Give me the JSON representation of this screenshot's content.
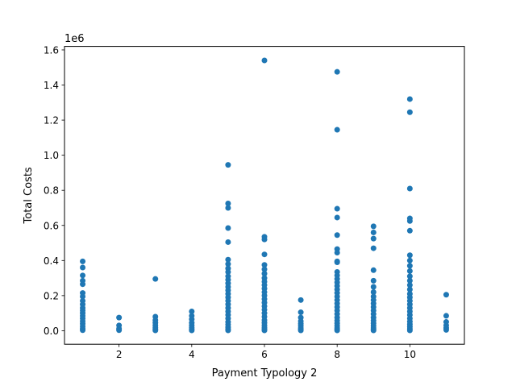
{
  "chart_data": {
    "type": "scatter",
    "xlabel": "Payment Typology 2",
    "ylabel": "Total Costs",
    "y_offset_label": "1e6",
    "xlim": [
      0.5,
      11.5
    ],
    "ylim": [
      -0.077,
      1.62
    ],
    "x_ticks": [
      2,
      4,
      6,
      8,
      10
    ],
    "x_tick_labels": [
      "2",
      "4",
      "6",
      "8",
      "10"
    ],
    "y_ticks": [
      0.0,
      0.2,
      0.4,
      0.6,
      0.8,
      1.0,
      1.2,
      1.4,
      1.6
    ],
    "y_tick_labels": [
      "0.0",
      "0.2",
      "0.4",
      "0.6",
      "0.8",
      "1.0",
      "1.2",
      "1.4",
      "1.6"
    ],
    "grid": false,
    "legend": "none",
    "marker_color": "#1f77b4",
    "series": [
      {
        "points": [
          {
            "x": 1,
            "y": 0.395
          },
          {
            "x": 1,
            "y": 0.36
          },
          {
            "x": 1,
            "y": 0.315
          },
          {
            "x": 1,
            "y": 0.285
          },
          {
            "x": 1,
            "y": 0.265
          },
          {
            "x": 1,
            "y": 0.215
          },
          {
            "x": 1,
            "y": 0.195
          },
          {
            "x": 1,
            "y": 0.17
          },
          {
            "x": 1,
            "y": 0.15
          },
          {
            "x": 1,
            "y": 0.13
          },
          {
            "x": 1,
            "y": 0.115
          },
          {
            "x": 1,
            "y": 0.1
          },
          {
            "x": 1,
            "y": 0.085
          },
          {
            "x": 1,
            "y": 0.07
          },
          {
            "x": 1,
            "y": 0.055
          },
          {
            "x": 1,
            "y": 0.04
          },
          {
            "x": 1,
            "y": 0.025
          },
          {
            "x": 1,
            "y": 0.012
          },
          {
            "x": 1,
            "y": 0.003
          },
          {
            "x": 2,
            "y": 0.075
          },
          {
            "x": 2,
            "y": 0.03
          },
          {
            "x": 2,
            "y": 0.012
          },
          {
            "x": 2,
            "y": 0.003
          },
          {
            "x": 3,
            "y": 0.295
          },
          {
            "x": 3,
            "y": 0.08
          },
          {
            "x": 3,
            "y": 0.06
          },
          {
            "x": 3,
            "y": 0.045
          },
          {
            "x": 3,
            "y": 0.03
          },
          {
            "x": 3,
            "y": 0.018
          },
          {
            "x": 3,
            "y": 0.008
          },
          {
            "x": 3,
            "y": 0.002
          },
          {
            "x": 4,
            "y": 0.11
          },
          {
            "x": 4,
            "y": 0.085
          },
          {
            "x": 4,
            "y": 0.065
          },
          {
            "x": 4,
            "y": 0.045
          },
          {
            "x": 4,
            "y": 0.03
          },
          {
            "x": 4,
            "y": 0.018
          },
          {
            "x": 4,
            "y": 0.008
          },
          {
            "x": 4,
            "y": 0.002
          },
          {
            "x": 5,
            "y": 0.945
          },
          {
            "x": 5,
            "y": 0.725
          },
          {
            "x": 5,
            "y": 0.7
          },
          {
            "x": 5,
            "y": 0.585
          },
          {
            "x": 5,
            "y": 0.505
          },
          {
            "x": 5,
            "y": 0.405
          },
          {
            "x": 5,
            "y": 0.38
          },
          {
            "x": 5,
            "y": 0.355
          },
          {
            "x": 5,
            "y": 0.335
          },
          {
            "x": 5,
            "y": 0.31
          },
          {
            "x": 5,
            "y": 0.29
          },
          {
            "x": 5,
            "y": 0.27
          },
          {
            "x": 5,
            "y": 0.25
          },
          {
            "x": 5,
            "y": 0.23
          },
          {
            "x": 5,
            "y": 0.21
          },
          {
            "x": 5,
            "y": 0.19
          },
          {
            "x": 5,
            "y": 0.17
          },
          {
            "x": 5,
            "y": 0.15
          },
          {
            "x": 5,
            "y": 0.13
          },
          {
            "x": 5,
            "y": 0.11
          },
          {
            "x": 5,
            "y": 0.09
          },
          {
            "x": 5,
            "y": 0.07
          },
          {
            "x": 5,
            "y": 0.05
          },
          {
            "x": 5,
            "y": 0.035
          },
          {
            "x": 5,
            "y": 0.02
          },
          {
            "x": 5,
            "y": 0.008
          },
          {
            "x": 5,
            "y": 0.002
          },
          {
            "x": 6,
            "y": 1.54
          },
          {
            "x": 6,
            "y": 0.535
          },
          {
            "x": 6,
            "y": 0.52
          },
          {
            "x": 6,
            "y": 0.435
          },
          {
            "x": 6,
            "y": 0.375
          },
          {
            "x": 6,
            "y": 0.35
          },
          {
            "x": 6,
            "y": 0.325
          },
          {
            "x": 6,
            "y": 0.3
          },
          {
            "x": 6,
            "y": 0.28
          },
          {
            "x": 6,
            "y": 0.26
          },
          {
            "x": 6,
            "y": 0.24
          },
          {
            "x": 6,
            "y": 0.22
          },
          {
            "x": 6,
            "y": 0.2
          },
          {
            "x": 6,
            "y": 0.18
          },
          {
            "x": 6,
            "y": 0.16
          },
          {
            "x": 6,
            "y": 0.14
          },
          {
            "x": 6,
            "y": 0.12
          },
          {
            "x": 6,
            "y": 0.1
          },
          {
            "x": 6,
            "y": 0.08
          },
          {
            "x": 6,
            "y": 0.06
          },
          {
            "x": 6,
            "y": 0.045
          },
          {
            "x": 6,
            "y": 0.03
          },
          {
            "x": 6,
            "y": 0.018
          },
          {
            "x": 6,
            "y": 0.008
          },
          {
            "x": 6,
            "y": 0.002
          },
          {
            "x": 7,
            "y": 0.175
          },
          {
            "x": 7,
            "y": 0.105
          },
          {
            "x": 7,
            "y": 0.075
          },
          {
            "x": 7,
            "y": 0.055
          },
          {
            "x": 7,
            "y": 0.04
          },
          {
            "x": 7,
            "y": 0.028
          },
          {
            "x": 7,
            "y": 0.016
          },
          {
            "x": 7,
            "y": 0.007
          },
          {
            "x": 7,
            "y": 0.002
          },
          {
            "x": 8,
            "y": 1.475
          },
          {
            "x": 8,
            "y": 1.145
          },
          {
            "x": 8,
            "y": 0.695
          },
          {
            "x": 8,
            "y": 0.645
          },
          {
            "x": 8,
            "y": 0.545
          },
          {
            "x": 8,
            "y": 0.465
          },
          {
            "x": 8,
            "y": 0.445
          },
          {
            "x": 8,
            "y": 0.395
          },
          {
            "x": 8,
            "y": 0.39
          },
          {
            "x": 8,
            "y": 0.335
          },
          {
            "x": 8,
            "y": 0.315
          },
          {
            "x": 8,
            "y": 0.295
          },
          {
            "x": 8,
            "y": 0.275
          },
          {
            "x": 8,
            "y": 0.255
          },
          {
            "x": 8,
            "y": 0.235
          },
          {
            "x": 8,
            "y": 0.215
          },
          {
            "x": 8,
            "y": 0.195
          },
          {
            "x": 8,
            "y": 0.175
          },
          {
            "x": 8,
            "y": 0.155
          },
          {
            "x": 8,
            "y": 0.135
          },
          {
            "x": 8,
            "y": 0.115
          },
          {
            "x": 8,
            "y": 0.095
          },
          {
            "x": 8,
            "y": 0.075
          },
          {
            "x": 8,
            "y": 0.058
          },
          {
            "x": 8,
            "y": 0.042
          },
          {
            "x": 8,
            "y": 0.028
          },
          {
            "x": 8,
            "y": 0.016
          },
          {
            "x": 8,
            "y": 0.007
          },
          {
            "x": 8,
            "y": 0.002
          },
          {
            "x": 9,
            "y": 0.595
          },
          {
            "x": 9,
            "y": 0.56
          },
          {
            "x": 9,
            "y": 0.525
          },
          {
            "x": 9,
            "y": 0.47
          },
          {
            "x": 9,
            "y": 0.345
          },
          {
            "x": 9,
            "y": 0.285
          },
          {
            "x": 9,
            "y": 0.25
          },
          {
            "x": 9,
            "y": 0.22
          },
          {
            "x": 9,
            "y": 0.195
          },
          {
            "x": 9,
            "y": 0.175
          },
          {
            "x": 9,
            "y": 0.155
          },
          {
            "x": 9,
            "y": 0.135
          },
          {
            "x": 9,
            "y": 0.115
          },
          {
            "x": 9,
            "y": 0.095
          },
          {
            "x": 9,
            "y": 0.075
          },
          {
            "x": 9,
            "y": 0.058
          },
          {
            "x": 9,
            "y": 0.042
          },
          {
            "x": 9,
            "y": 0.028
          },
          {
            "x": 9,
            "y": 0.016
          },
          {
            "x": 9,
            "y": 0.007
          },
          {
            "x": 9,
            "y": 0.002
          },
          {
            "x": 10,
            "y": 1.32
          },
          {
            "x": 10,
            "y": 1.245
          },
          {
            "x": 10,
            "y": 0.81
          },
          {
            "x": 10,
            "y": 0.64
          },
          {
            "x": 10,
            "y": 0.625
          },
          {
            "x": 10,
            "y": 0.57
          },
          {
            "x": 10,
            "y": 0.43
          },
          {
            "x": 10,
            "y": 0.4
          },
          {
            "x": 10,
            "y": 0.37
          },
          {
            "x": 10,
            "y": 0.34
          },
          {
            "x": 10,
            "y": 0.31
          },
          {
            "x": 10,
            "y": 0.285
          },
          {
            "x": 10,
            "y": 0.26
          },
          {
            "x": 10,
            "y": 0.235
          },
          {
            "x": 10,
            "y": 0.21
          },
          {
            "x": 10,
            "y": 0.19
          },
          {
            "x": 10,
            "y": 0.17
          },
          {
            "x": 10,
            "y": 0.15
          },
          {
            "x": 10,
            "y": 0.13
          },
          {
            "x": 10,
            "y": 0.11
          },
          {
            "x": 10,
            "y": 0.09
          },
          {
            "x": 10,
            "y": 0.07
          },
          {
            "x": 10,
            "y": 0.052
          },
          {
            "x": 10,
            "y": 0.036
          },
          {
            "x": 10,
            "y": 0.022
          },
          {
            "x": 10,
            "y": 0.01
          },
          {
            "x": 10,
            "y": 0.002
          },
          {
            "x": 11,
            "y": 0.205
          },
          {
            "x": 11,
            "y": 0.085
          },
          {
            "x": 11,
            "y": 0.05
          },
          {
            "x": 11,
            "y": 0.03
          },
          {
            "x": 11,
            "y": 0.015
          },
          {
            "x": 11,
            "y": 0.005
          }
        ]
      }
    ]
  }
}
